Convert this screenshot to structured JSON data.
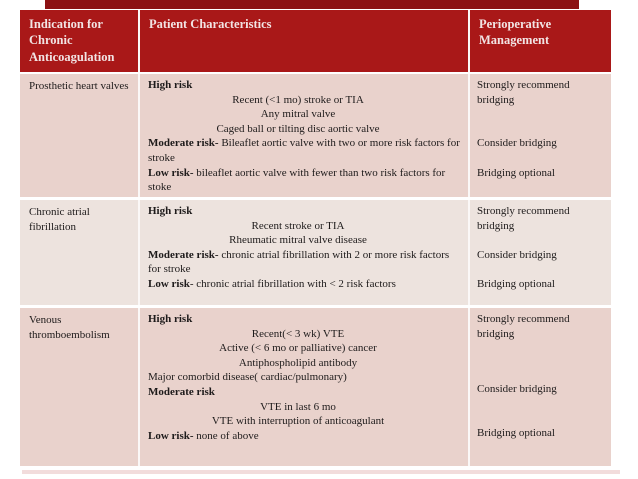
{
  "colors": {
    "header_bg": "#a91818",
    "top_bar": "#8c1113",
    "row_pink": "#e9d2cc",
    "row_light": "#ede3de",
    "header_text": "#f2e4e4",
    "body_text": "#1e1b1b"
  },
  "table": {
    "header": {
      "indication": "Indication for Chronic Anticoagulation",
      "characteristics": "Patient Characteristics",
      "management": "Perioperative Management"
    },
    "rows": [
      {
        "indication": "Prosthetic heart valves",
        "characteristics": [
          {
            "bold": "High risk",
            "rest": ""
          },
          {
            "text": "Recent (<1 mo) stroke or TIA"
          },
          {
            "text": "Any mitral valve"
          },
          {
            "text": "Caged ball or tilting disc aortic valve"
          },
          {
            "bold": "Moderate risk-",
            "rest": " Bileaflet aortic valve with  two or more risk factors for stroke"
          },
          {
            "bold": "Low risk-",
            "rest": " bileaflet aortic valve with fewer than two risk factors for stoke"
          }
        ],
        "management": [
          "Strongly recommend bridging",
          "Consider bridging",
          "Bridging optional"
        ]
      },
      {
        "indication": "Chronic atrial fibrillation",
        "characteristics": [
          {
            "bold": "High risk",
            "rest": ""
          },
          {
            "text": "Recent stroke or TIA"
          },
          {
            "text": "Rheumatic mitral valve disease"
          },
          {
            "bold": "Moderate risk-",
            "rest": " chronic atrial fibrillation with 2 or more risk factors for stroke"
          },
          {
            "bold": "Low risk",
            "rest": "- chronic atrial fibrillation with < 2 risk factors"
          }
        ],
        "management": [
          "Strongly recommend bridging",
          "Consider bridging",
          "Bridging optional"
        ]
      },
      {
        "indication": "Venous thromboembolism",
        "characteristics": [
          {
            "bold": "High risk",
            "rest": ""
          },
          {
            "text": "Recent(< 3 wk) VTE"
          },
          {
            "text": "Active (< 6 mo or palliative) cancer"
          },
          {
            "text": "Antiphospholipid antibody"
          },
          {
            "text_left": "Major comorbid disease( cardiac/pulmonary)"
          },
          {
            "bold": "Moderate risk",
            "rest": ""
          },
          {
            "text": "VTE in last 6 mo"
          },
          {
            "text": "VTE with interruption of anticoagulant"
          },
          {
            "bold": "Low risk-",
            "rest": " none of above"
          }
        ],
        "management": [
          "Strongly recommend bridging",
          "Consider bridging",
          "Bridging  optional"
        ]
      }
    ]
  }
}
